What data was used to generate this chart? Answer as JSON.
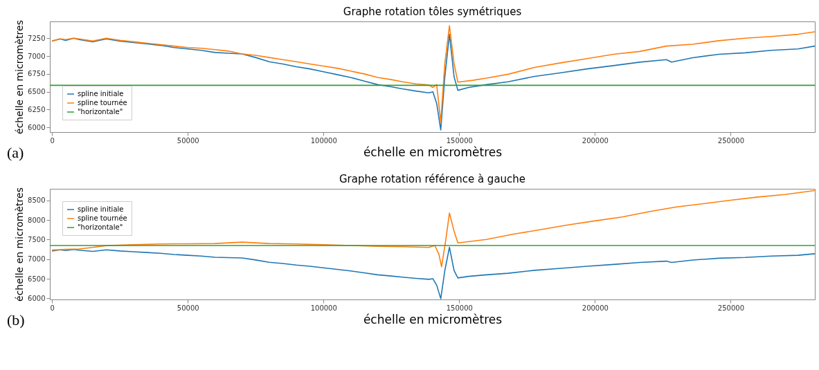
{
  "chart_data": [
    {
      "type": "line",
      "title": "Graphe rotation tôles symétriques",
      "xlabel": "échelle en micromètres",
      "ylabel": "échelle en micromètres",
      "xlim": [
        -800,
        281000
      ],
      "xticks": [
        0,
        50000,
        100000,
        150000,
        200000,
        250000
      ],
      "ylim": [
        5935,
        7485
      ],
      "yticks": [
        6000,
        6250,
        6500,
        6750,
        7000,
        7250
      ],
      "legend": "bottom left",
      "annotations": [
        "(a)"
      ],
      "series": [
        {
          "name": "spline initiale",
          "color": "#1f77b4",
          "x": [
            0,
            3000,
            5000,
            8000,
            10000,
            15000,
            20000,
            25000,
            30000,
            35000,
            40000,
            45000,
            50000,
            55000,
            60000,
            65000,
            70000,
            75000,
            80000,
            85000,
            90000,
            95000,
            100000,
            105000,
            110000,
            115000,
            120000,
            125000,
            129100,
            134000,
            138800,
            140300,
            141700,
            143200,
            144700,
            146400,
            148100,
            149500,
            153400,
            160000,
            168000,
            177700,
            187400,
            197100,
            206800,
            216500,
            226300,
            228200,
            236000,
            245600,
            255300,
            265000,
            274800,
            281000
          ],
          "values": [
            7210,
            7240,
            7220,
            7250,
            7230,
            7200,
            7240,
            7210,
            7190,
            7170,
            7150,
            7120,
            7100,
            7080,
            7050,
            7040,
            7030,
            6980,
            6920,
            6890,
            6850,
            6820,
            6780,
            6740,
            6700,
            6650,
            6600,
            6570,
            6540,
            6510,
            6485,
            6500,
            6335,
            5965,
            6710,
            7305,
            6710,
            6520,
            6560,
            6600,
            6640,
            6715,
            6765,
            6820,
            6866,
            6915,
            6950,
            6915,
            6977,
            7025,
            7045,
            7080,
            7100,
            7140
          ]
        },
        {
          "name": "spline tournée",
          "color": "#ff7f0e",
          "x": [
            0,
            3000,
            5000,
            8000,
            10000,
            15000,
            20000,
            25000,
            30000,
            35000,
            40000,
            45000,
            50000,
            55000,
            60000,
            65000,
            70000,
            75000,
            80000,
            85000,
            90000,
            95000,
            100000,
            105000,
            110000,
            115000,
            120000,
            125000,
            129100,
            134000,
            138800,
            140300,
            141700,
            143200,
            144700,
            146400,
            148100,
            149500,
            155000,
            160000,
            168000,
            177700,
            187400,
            197100,
            206800,
            216500,
            226300,
            236000,
            245600,
            255300,
            265000,
            274800,
            281000
          ],
          "values": [
            7210,
            7240,
            7230,
            7250,
            7240,
            7210,
            7250,
            7220,
            7200,
            7180,
            7160,
            7140,
            7120,
            7110,
            7090,
            7070,
            7030,
            7010,
            6980,
            6950,
            6920,
            6890,
            6860,
            6830,
            6790,
            6750,
            6700,
            6670,
            6640,
            6610,
            6595,
            6560,
            6600,
            6075,
            6895,
            7425,
            6895,
            6635,
            6660,
            6690,
            6745,
            6840,
            6905,
            6965,
            7025,
            7065,
            7140,
            7165,
            7215,
            7250,
            7275,
            7305,
            7340
          ]
        },
        {
          "name": "\"horizontale\"",
          "color": "#2ca02c",
          "x": [
            -800,
            281000
          ],
          "values": [
            6590,
            6590
          ]
        }
      ]
    },
    {
      "type": "line",
      "title": "Graphe rotation référence à gauche",
      "xlabel": "échelle en micromètres",
      "ylabel": "échelle en micromètres",
      "xlim": [
        -800,
        281000
      ],
      "xticks": [
        0,
        50000,
        100000,
        150000,
        200000,
        250000
      ],
      "ylim": [
        5970,
        8800
      ],
      "yticks": [
        6000,
        6500,
        7000,
        7500,
        8000,
        8500
      ],
      "legend": "top left",
      "annotations": [
        "(b)"
      ],
      "series": [
        {
          "name": "spline initiale",
          "color": "#1f77b4",
          "x": [
            0,
            3000,
            5000,
            8000,
            10000,
            15000,
            20000,
            25000,
            30000,
            35000,
            40000,
            45000,
            50000,
            55000,
            60000,
            65000,
            70000,
            75000,
            80000,
            85000,
            90000,
            95000,
            100000,
            105000,
            110000,
            115000,
            120000,
            125000,
            129100,
            134000,
            138800,
            140300,
            141700,
            143200,
            144700,
            146400,
            148100,
            149500,
            153400,
            160000,
            168000,
            177700,
            187400,
            197100,
            206800,
            216500,
            226300,
            228200,
            236000,
            245600,
            255300,
            265000,
            274800,
            281000
          ],
          "values": [
            7210,
            7240,
            7220,
            7250,
            7230,
            7200,
            7240,
            7210,
            7190,
            7170,
            7150,
            7120,
            7100,
            7080,
            7050,
            7040,
            7030,
            6980,
            6920,
            6890,
            6850,
            6820,
            6780,
            6740,
            6700,
            6650,
            6600,
            6570,
            6540,
            6510,
            6485,
            6500,
            6335,
            5990,
            6710,
            7305,
            6710,
            6520,
            6560,
            6600,
            6640,
            6715,
            6765,
            6820,
            6866,
            6915,
            6950,
            6915,
            6977,
            7025,
            7045,
            7080,
            7100,
            7140
          ]
        },
        {
          "name": "spline tournée",
          "color": "#ff7f0e",
          "x": [
            0,
            5000,
            10000,
            15000,
            20000,
            30000,
            40000,
            50000,
            60000,
            70000,
            80000,
            90000,
            100000,
            110000,
            120000,
            129100,
            138800,
            141000,
            142500,
            143500,
            145000,
            146400,
            148000,
            149500,
            160000,
            170000,
            180000,
            190000,
            200000,
            210000,
            220000,
            230000,
            240000,
            250000,
            260000,
            270000,
            281000
          ],
          "values": [
            7233,
            7250,
            7260,
            7300,
            7348,
            7370,
            7390,
            7395,
            7400,
            7436,
            7400,
            7390,
            7370,
            7350,
            7330,
            7320,
            7300,
            7350,
            7130,
            6806,
            7470,
            8180,
            7740,
            7415,
            7505,
            7640,
            7755,
            7877,
            7980,
            8080,
            8215,
            8337,
            8420,
            8507,
            8590,
            8655,
            8757
          ]
        },
        {
          "name": "\"horizontale\"",
          "color": "#2ca02c",
          "x": [
            -800,
            281000
          ],
          "values": [
            7350,
            7350
          ]
        }
      ]
    }
  ]
}
